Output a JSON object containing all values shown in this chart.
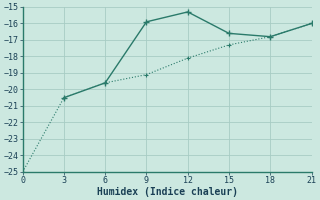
{
  "line1_x": [
    0,
    3,
    6,
    9,
    12,
    15,
    18,
    21
  ],
  "line1_y": [
    -25.0,
    -20.5,
    -19.6,
    -19.1,
    -18.1,
    -17.3,
    -16.8,
    -16.0
  ],
  "line2_x": [
    3,
    6,
    9,
    12,
    15,
    18,
    21
  ],
  "line2_y": [
    -20.5,
    -19.6,
    -15.9,
    -15.3,
    -16.6,
    -16.8,
    -16.0
  ],
  "line_color": "#2a7a6a",
  "bg_color": "#cce8e0",
  "grid_color": "#a8ccc4",
  "spine_color": "#2a7a6a",
  "xlabel": "Humidex (Indice chaleur)",
  "xlim": [
    0,
    21
  ],
  "ylim": [
    -25,
    -15
  ],
  "xticks": [
    0,
    3,
    6,
    9,
    12,
    15,
    18,
    21
  ],
  "yticks": [
    -25,
    -24,
    -23,
    -22,
    -21,
    -20,
    -19,
    -18,
    -17,
    -16,
    -15
  ],
  "font_color": "#1a4055",
  "font_family": "monospace",
  "font_size_tick": 6,
  "font_size_xlabel": 7
}
